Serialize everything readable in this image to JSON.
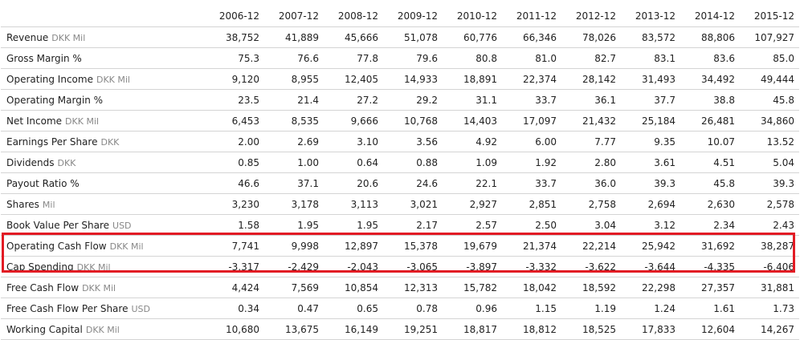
{
  "years": [
    "2006-12",
    "2007-12",
    "2008-12",
    "2009-12",
    "2010-12",
    "2011-12",
    "2012-12",
    "2013-12",
    "2014-12",
    "2015-12"
  ],
  "rows": [
    {
      "name": "Revenue",
      "unit": "DKK Mil",
      "values": [
        "38,752",
        "41,889",
        "45,666",
        "51,078",
        "60,776",
        "66,346",
        "78,026",
        "83,572",
        "88,806",
        "107,927"
      ]
    },
    {
      "name": "Gross Margin %",
      "unit": "",
      "values": [
        "75.3",
        "76.6",
        "77.8",
        "79.6",
        "80.8",
        "81.0",
        "82.7",
        "83.1",
        "83.6",
        "85.0"
      ]
    },
    {
      "name": "Operating Income",
      "unit": "DKK Mil",
      "values": [
        "9,120",
        "8,955",
        "12,405",
        "14,933",
        "18,891",
        "22,374",
        "28,142",
        "31,493",
        "34,492",
        "49,444"
      ]
    },
    {
      "name": "Operating Margin %",
      "unit": "",
      "values": [
        "23.5",
        "21.4",
        "27.2",
        "29.2",
        "31.1",
        "33.7",
        "36.1",
        "37.7",
        "38.8",
        "45.8"
      ]
    },
    {
      "name": "Net Income",
      "unit": "DKK Mil",
      "values": [
        "6,453",
        "8,535",
        "9,666",
        "10,768",
        "14,403",
        "17,097",
        "21,432",
        "25,184",
        "26,481",
        "34,860"
      ]
    },
    {
      "name": "Earnings Per Share",
      "unit": "DKK",
      "values": [
        "2.00",
        "2.69",
        "3.10",
        "3.56",
        "4.92",
        "6.00",
        "7.77",
        "9.35",
        "10.07",
        "13.52"
      ]
    },
    {
      "name": "Dividends",
      "unit": "DKK",
      "values": [
        "0.85",
        "1.00",
        "0.64",
        "0.88",
        "1.09",
        "1.92",
        "2.80",
        "3.61",
        "4.51",
        "5.04"
      ]
    },
    {
      "name": "Payout Ratio %",
      "unit": "",
      "values": [
        "46.6",
        "37.1",
        "20.6",
        "24.6",
        "22.1",
        "33.7",
        "36.0",
        "39.3",
        "45.8",
        "39.3"
      ]
    },
    {
      "name": "Shares",
      "unit": "Mil",
      "values": [
        "3,230",
        "3,178",
        "3,113",
        "3,021",
        "2,927",
        "2,851",
        "2,758",
        "2,694",
        "2,630",
        "2,578"
      ]
    },
    {
      "name": "Book Value Per Share",
      "unit": "USD",
      "values": [
        "1.58",
        "1.95",
        "1.95",
        "2.17",
        "2.57",
        "2.50",
        "3.04",
        "3.12",
        "2.34",
        "2.43"
      ]
    },
    {
      "name": "Operating Cash Flow",
      "unit": "DKK Mil",
      "values": [
        "7,741",
        "9,998",
        "12,897",
        "15,378",
        "19,679",
        "21,374",
        "22,214",
        "25,942",
        "31,692",
        "38,287"
      ]
    },
    {
      "name": "Cap Spending",
      "unit": "DKK Mil",
      "values": [
        "-3,317",
        "-2,429",
        "-2,043",
        "-3,065",
        "-3,897",
        "-3,332",
        "-3,622",
        "-3,644",
        "-4,335",
        "-6,406"
      ]
    },
    {
      "name": "Free Cash Flow",
      "unit": "DKK Mil",
      "values": [
        "4,424",
        "7,569",
        "10,854",
        "12,313",
        "15,782",
        "18,042",
        "18,592",
        "22,298",
        "27,357",
        "31,881"
      ]
    },
    {
      "name": "Free Cash Flow Per Share",
      "unit": "USD",
      "values": [
        "0.34",
        "0.47",
        "0.65",
        "0.78",
        "0.96",
        "1.15",
        "1.19",
        "1.24",
        "1.61",
        "1.73"
      ]
    },
    {
      "name": "Working Capital",
      "unit": "DKK Mil",
      "values": [
        "10,680",
        "13,675",
        "16,149",
        "19,251",
        "18,817",
        "18,812",
        "18,525",
        "17,833",
        "12,604",
        "14,267"
      ]
    }
  ],
  "colors": {
    "highlight": "#e21b24",
    "divider": "#d4d4d4",
    "unit_text": "#888888"
  }
}
